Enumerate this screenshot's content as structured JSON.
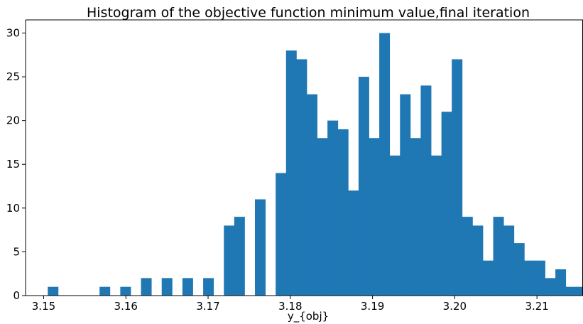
{
  "chart_data": {
    "type": "bar",
    "title": "Histogram of the objective function minimum value,final iteration",
    "xlabel": "y_{obj}",
    "ylabel": "",
    "xlim": [
      3.1478,
      3.2156
    ],
    "ylim": [
      0,
      31.5
    ],
    "bin_start": 3.1505,
    "bin_width": 0.00126,
    "counts": [
      1,
      0,
      0,
      0,
      0,
      1,
      0,
      1,
      0,
      2,
      0,
      2,
      0,
      2,
      0,
      2,
      0,
      8,
      9,
      0,
      11,
      0,
      14,
      28,
      27,
      23,
      18,
      20,
      19,
      12,
      25,
      18,
      30,
      16,
      23,
      18,
      24,
      16,
      21,
      27,
      9,
      8,
      4,
      9,
      8,
      6,
      4,
      4,
      2,
      3,
      1,
      1,
      0,
      1
    ],
    "counts_note": "",
    "xticks": [
      "3.15",
      "3.16",
      "3.17",
      "3.18",
      "3.19",
      "3.20",
      "3.21"
    ],
    "yticks": [
      "0",
      "5",
      "10",
      "15",
      "20",
      "25",
      "30"
    ],
    "bar_color": "#1f77b4",
    "grid": false,
    "legend": "none"
  }
}
